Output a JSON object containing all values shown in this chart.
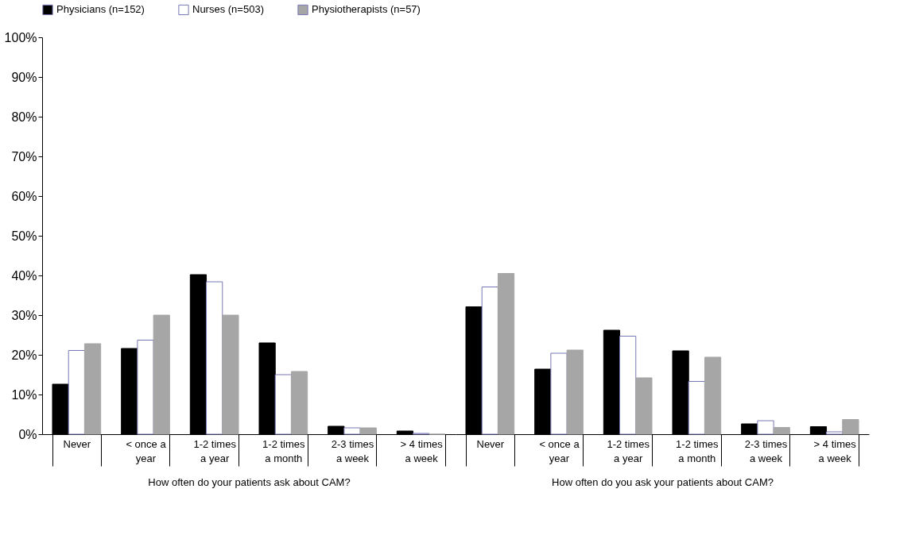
{
  "chart_data": [
    {
      "type": "bar",
      "xlabel": "How often do your patients ask about CAM?",
      "categories": [
        "Never",
        "< once a year",
        "1-2 times a year",
        "1-2 times a month",
        "2-3 times a week",
        "> 4 times a week"
      ],
      "series": [
        {
          "name": "Physicians (n=152)",
          "color": "#000000",
          "values": [
            12.6,
            21.6,
            40.2,
            23.0,
            2.0,
            0.8
          ]
        },
        {
          "name": "Nurses (n=503)",
          "color": "#ffffff",
          "values": [
            21.1,
            23.7,
            38.4,
            15.0,
            1.6,
            0.2
          ]
        },
        {
          "name": "Physiotherapists (n=57)",
          "color": "#a6a6a6",
          "values": [
            22.8,
            30.0,
            30.0,
            15.8,
            1.6,
            0
          ]
        }
      ],
      "ylim": [
        0,
        100
      ],
      "yticks": [
        {
          "value": 0,
          "label": "0%"
        },
        {
          "value": 10,
          "label": "10%"
        },
        {
          "value": 20,
          "label": "20%"
        },
        {
          "value": 30,
          "label": "30%"
        },
        {
          "value": 40,
          "label": "40%"
        },
        {
          "value": 50,
          "label": "50%"
        },
        {
          "value": 60,
          "label": "60%"
        },
        {
          "value": 70,
          "label": "70%"
        },
        {
          "value": 80,
          "label": "80%"
        },
        {
          "value": 90,
          "label": "90%"
        },
        {
          "value": 100,
          "label": "100%"
        }
      ],
      "grid": false,
      "legend": "top"
    },
    {
      "type": "bar",
      "xlabel": "How often do you ask your patients about CAM?",
      "categories": [
        "Never",
        "< once a year",
        "1-2 times a year",
        "1-2 times a month",
        "2-3 times a week",
        "> 4 times a week"
      ],
      "series": [
        {
          "name": "Physicians (n=152)",
          "color": "#000000",
          "values": [
            32.1,
            16.4,
            26.2,
            21.0,
            2.6,
            1.9
          ]
        },
        {
          "name": "Nurses (n=503)",
          "color": "#ffffff",
          "values": [
            37.1,
            20.4,
            24.7,
            13.3,
            3.4,
            0.6
          ]
        },
        {
          "name": "Physiotherapists (n=57)",
          "color": "#a6a6a6",
          "values": [
            40.5,
            21.2,
            14.2,
            19.4,
            1.7,
            3.7
          ]
        }
      ],
      "ylim": [
        0,
        100
      ],
      "tick_labels": "x",
      "grid": false,
      "legend": false
    }
  ]
}
